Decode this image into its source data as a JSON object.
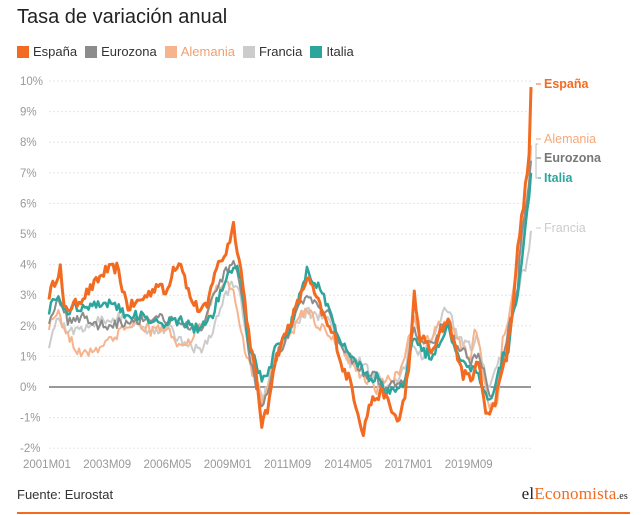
{
  "title": "Tasa de variación anual",
  "source": "Fuente: Eurostat",
  "logo": {
    "pre": "el",
    "highlight": "Economista",
    "suffix": ".es"
  },
  "chart_data": {
    "type": "line",
    "y_ticks": [
      "10%",
      "9%",
      "8%",
      "7%",
      "6%",
      "5%",
      "4%",
      "3%",
      "2%",
      "1%",
      "0%",
      "-1%",
      "-2%"
    ],
    "ylim": [
      -2,
      10
    ],
    "x_ticks": [
      "2001M01",
      "2003M09",
      "2006M05",
      "2009M01",
      "2011M09",
      "2014M05",
      "2017M01",
      "2019M09"
    ],
    "x_tick_index": [
      0,
      32,
      64,
      96,
      128,
      160,
      192,
      224
    ],
    "n_points": 257,
    "grid": true,
    "legend_position": "top-left",
    "series": [
      {
        "name": "España",
        "color": "#f26b21",
        "end_label": "España",
        "end_value": 9.8,
        "stroke_width": 3,
        "anchors": [
          [
            0,
            3.0
          ],
          [
            6,
            3.9
          ],
          [
            8,
            2.5
          ],
          [
            14,
            2.7
          ],
          [
            22,
            3.2
          ],
          [
            30,
            3.8
          ],
          [
            36,
            3.9
          ],
          [
            42,
            2.6
          ],
          [
            48,
            2.8
          ],
          [
            54,
            3.1
          ],
          [
            58,
            3.4
          ],
          [
            62,
            3.0
          ],
          [
            66,
            3.9
          ],
          [
            70,
            4.1
          ],
          [
            75,
            2.9
          ],
          [
            80,
            2.5
          ],
          [
            84,
            2.6
          ],
          [
            88,
            3.8
          ],
          [
            94,
            4.4
          ],
          [
            98,
            5.3
          ],
          [
            102,
            3.8
          ],
          [
            106,
            1.8
          ],
          [
            110,
            0.3
          ],
          [
            113,
            -1.2
          ],
          [
            116,
            -0.8
          ],
          [
            119,
            0.6
          ],
          [
            122,
            1.2
          ],
          [
            126,
            1.8
          ],
          [
            130,
            2.4
          ],
          [
            134,
            3.0
          ],
          [
            137,
            3.6
          ],
          [
            140,
            3.2
          ],
          [
            144,
            2.6
          ],
          [
            148,
            2.0
          ],
          [
            152,
            1.6
          ],
          [
            156,
            0.6
          ],
          [
            160,
            0.2
          ],
          [
            164,
            -0.8
          ],
          [
            167,
            -1.5
          ],
          [
            170,
            -0.6
          ],
          [
            174,
            -0.3
          ],
          [
            178,
            -0.2
          ],
          [
            182,
            -0.8
          ],
          [
            186,
            -1.1
          ],
          [
            189,
            -0.3
          ],
          [
            192,
            1.2
          ],
          [
            194,
            3.0
          ],
          [
            197,
            1.6
          ],
          [
            200,
            1.5
          ],
          [
            204,
            1.1
          ],
          [
            208,
            1.8
          ],
          [
            212,
            2.3
          ],
          [
            216,
            1.2
          ],
          [
            220,
            0.4
          ],
          [
            224,
            0.3
          ],
          [
            228,
            0.8
          ],
          [
            232,
            -0.7
          ],
          [
            234,
            -0.9
          ],
          [
            237,
            -0.5
          ],
          [
            240,
            0.5
          ],
          [
            243,
            1.0
          ],
          [
            246,
            2.5
          ],
          [
            249,
            4.5
          ],
          [
            251,
            5.5
          ],
          [
            253,
            6.5
          ],
          [
            255,
            7.6
          ],
          [
            256,
            9.8
          ]
        ]
      },
      {
        "name": "Eurozona",
        "color": "#8c8c8c",
        "end_label": "Eurozona",
        "end_value": 7.4,
        "stroke_width": 2,
        "anchors": [
          [
            0,
            2.2
          ],
          [
            4,
            2.8
          ],
          [
            10,
            2.2
          ],
          [
            18,
            2.3
          ],
          [
            26,
            2.0
          ],
          [
            36,
            2.1
          ],
          [
            46,
            2.2
          ],
          [
            56,
            2.3
          ],
          [
            66,
            2.2
          ],
          [
            76,
            1.9
          ],
          [
            82,
            2.0
          ],
          [
            88,
            3.0
          ],
          [
            94,
            3.8
          ],
          [
            98,
            4.0
          ],
          [
            102,
            3.2
          ],
          [
            106,
            1.1
          ],
          [
            110,
            0.0
          ],
          [
            113,
            -0.6
          ],
          [
            116,
            -0.2
          ],
          [
            120,
            0.9
          ],
          [
            126,
            1.6
          ],
          [
            132,
            2.5
          ],
          [
            137,
            3.0
          ],
          [
            142,
            2.6
          ],
          [
            148,
            2.4
          ],
          [
            154,
            1.6
          ],
          [
            160,
            1.0
          ],
          [
            166,
            0.6
          ],
          [
            170,
            0.3
          ],
          [
            174,
            0.4
          ],
          [
            178,
            -0.1
          ],
          [
            182,
            0.1
          ],
          [
            186,
            0.1
          ],
          [
            189,
            0.3
          ],
          [
            192,
            1.4
          ],
          [
            194,
            2.0
          ],
          [
            198,
            1.4
          ],
          [
            204,
            1.4
          ],
          [
            208,
            1.9
          ],
          [
            212,
            2.1
          ],
          [
            216,
            1.4
          ],
          [
            220,
            1.2
          ],
          [
            224,
            0.8
          ],
          [
            228,
            1.1
          ],
          [
            232,
            0.3
          ],
          [
            234,
            -0.3
          ],
          [
            238,
            0.0
          ],
          [
            241,
            0.9
          ],
          [
            244,
            1.9
          ],
          [
            247,
            2.6
          ],
          [
            249,
            3.4
          ],
          [
            251,
            4.9
          ],
          [
            253,
            5.8
          ],
          [
            255,
            6.7
          ],
          [
            256,
            7.4
          ]
        ]
      },
      {
        "name": "Alemania",
        "color": "#f7b48c",
        "end_label": "Alemania",
        "end_value": 7.9,
        "stroke_width": 2,
        "anchors": [
          [
            0,
            2.0
          ],
          [
            4,
            2.5
          ],
          [
            8,
            2.0
          ],
          [
            14,
            1.2
          ],
          [
            20,
            1.1
          ],
          [
            26,
            1.3
          ],
          [
            34,
            1.6
          ],
          [
            40,
            1.9
          ],
          [
            46,
            2.2
          ],
          [
            54,
            1.8
          ],
          [
            60,
            2.0
          ],
          [
            66,
            1.6
          ],
          [
            72,
            1.2
          ],
          [
            78,
            1.9
          ],
          [
            82,
            1.9
          ],
          [
            88,
            3.2
          ],
          [
            94,
            3.5
          ],
          [
            98,
            3.0
          ],
          [
            102,
            1.7
          ],
          [
            106,
            0.9
          ],
          [
            110,
            0.1
          ],
          [
            113,
            -0.6
          ],
          [
            116,
            0.0
          ],
          [
            120,
            1.0
          ],
          [
            126,
            1.5
          ],
          [
            130,
            1.9
          ],
          [
            134,
            2.4
          ],
          [
            138,
            2.5
          ],
          [
            142,
            2.0
          ],
          [
            148,
            1.8
          ],
          [
            154,
            1.4
          ],
          [
            160,
            0.8
          ],
          [
            166,
            0.4
          ],
          [
            170,
            0.2
          ],
          [
            174,
            -0.1
          ],
          [
            178,
            0.2
          ],
          [
            182,
            0.3
          ],
          [
            186,
            0.4
          ],
          [
            189,
            1.0
          ],
          [
            192,
            1.9
          ],
          [
            194,
            2.2
          ],
          [
            198,
            1.4
          ],
          [
            204,
            1.7
          ],
          [
            208,
            2.1
          ],
          [
            212,
            2.2
          ],
          [
            216,
            1.6
          ],
          [
            220,
            1.3
          ],
          [
            224,
            1.0
          ],
          [
            226,
            2.0
          ],
          [
            228,
            1.5
          ],
          [
            232,
            -0.1
          ],
          [
            234,
            -0.7
          ],
          [
            238,
            -0.6
          ],
          [
            241,
            1.6
          ],
          [
            244,
            2.2
          ],
          [
            247,
            3.4
          ],
          [
            249,
            4.1
          ],
          [
            251,
            4.5
          ],
          [
            253,
            5.7
          ],
          [
            255,
            6.6
          ],
          [
            256,
            7.9
          ]
        ]
      },
      {
        "name": "Francia",
        "color": "#cccccc",
        "end_label": "Francia",
        "end_value": 5.1,
        "stroke_width": 2,
        "anchors": [
          [
            0,
            1.4
          ],
          [
            4,
            2.2
          ],
          [
            10,
            1.8
          ],
          [
            16,
            1.9
          ],
          [
            22,
            2.1
          ],
          [
            28,
            2.2
          ],
          [
            36,
            2.3
          ],
          [
            44,
            2.1
          ],
          [
            50,
            1.8
          ],
          [
            56,
            1.9
          ],
          [
            62,
            1.9
          ],
          [
            66,
            1.8
          ],
          [
            72,
            1.4
          ],
          [
            80,
            1.2
          ],
          [
            86,
            1.6
          ],
          [
            92,
            2.8
          ],
          [
            98,
            3.4
          ],
          [
            102,
            2.9
          ],
          [
            106,
            1.2
          ],
          [
            110,
            0.2
          ],
          [
            113,
            -0.4
          ],
          [
            116,
            -0.1
          ],
          [
            120,
            0.9
          ],
          [
            126,
            1.6
          ],
          [
            132,
            2.1
          ],
          [
            137,
            2.5
          ],
          [
            142,
            2.3
          ],
          [
            148,
            2.3
          ],
          [
            154,
            1.5
          ],
          [
            160,
            0.8
          ],
          [
            166,
            0.8
          ],
          [
            170,
            0.5
          ],
          [
            174,
            0.4
          ],
          [
            178,
            0.0
          ],
          [
            182,
            0.2
          ],
          [
            186,
            0.3
          ],
          [
            189,
            0.6
          ],
          [
            192,
            1.6
          ],
          [
            194,
            1.4
          ],
          [
            198,
            1.0
          ],
          [
            204,
            1.5
          ],
          [
            208,
            2.3
          ],
          [
            212,
            2.6
          ],
          [
            216,
            1.8
          ],
          [
            220,
            1.5
          ],
          [
            224,
            1.3
          ],
          [
            228,
            1.6
          ],
          [
            232,
            0.2
          ],
          [
            234,
            0.0
          ],
          [
            238,
            0.8
          ],
          [
            241,
            0.8
          ],
          [
            244,
            1.5
          ],
          [
            247,
            2.7
          ],
          [
            249,
            3.1
          ],
          [
            251,
            3.8
          ],
          [
            253,
            3.7
          ],
          [
            255,
            4.5
          ],
          [
            256,
            5.1
          ]
        ]
      },
      {
        "name": "Italia",
        "color": "#2ca59c",
        "end_label": "Italia",
        "end_value": 7.0,
        "stroke_width": 2.5,
        "anchors": [
          [
            0,
            2.5
          ],
          [
            4,
            3.0
          ],
          [
            8,
            2.5
          ],
          [
            16,
            2.6
          ],
          [
            24,
            2.7
          ],
          [
            32,
            2.8
          ],
          [
            40,
            2.4
          ],
          [
            48,
            2.3
          ],
          [
            56,
            2.2
          ],
          [
            62,
            2.1
          ],
          [
            68,
            2.2
          ],
          [
            74,
            2.0
          ],
          [
            80,
            1.9
          ],
          [
            86,
            2.2
          ],
          [
            92,
            3.3
          ],
          [
            98,
            4.0
          ],
          [
            102,
            3.7
          ],
          [
            106,
            1.4
          ],
          [
            110,
            0.8
          ],
          [
            113,
            0.3
          ],
          [
            116,
            0.3
          ],
          [
            120,
            1.2
          ],
          [
            126,
            1.6
          ],
          [
            130,
            2.3
          ],
          [
            134,
            3.1
          ],
          [
            137,
            3.8
          ],
          [
            142,
            3.4
          ],
          [
            148,
            2.6
          ],
          [
            154,
            1.5
          ],
          [
            160,
            1.1
          ],
          [
            166,
            0.6
          ],
          [
            170,
            0.3
          ],
          [
            174,
            0.3
          ],
          [
            178,
            -0.2
          ],
          [
            182,
            -0.1
          ],
          [
            186,
            0.0
          ],
          [
            189,
            0.1
          ],
          [
            192,
            1.3
          ],
          [
            194,
            1.5
          ],
          [
            198,
            1.2
          ],
          [
            204,
            1.0
          ],
          [
            208,
            1.6
          ],
          [
            212,
            1.9
          ],
          [
            216,
            1.3
          ],
          [
            220,
            0.8
          ],
          [
            224,
            0.6
          ],
          [
            228,
            0.5
          ],
          [
            232,
            -0.3
          ],
          [
            234,
            -0.4
          ],
          [
            238,
            0.3
          ],
          [
            241,
            1.0
          ],
          [
            244,
            1.0
          ],
          [
            246,
            2.3
          ],
          [
            249,
            3.0
          ],
          [
            251,
            4.1
          ],
          [
            253,
            5.3
          ],
          [
            255,
            6.2
          ],
          [
            256,
            7.0
          ]
        ]
      }
    ]
  }
}
